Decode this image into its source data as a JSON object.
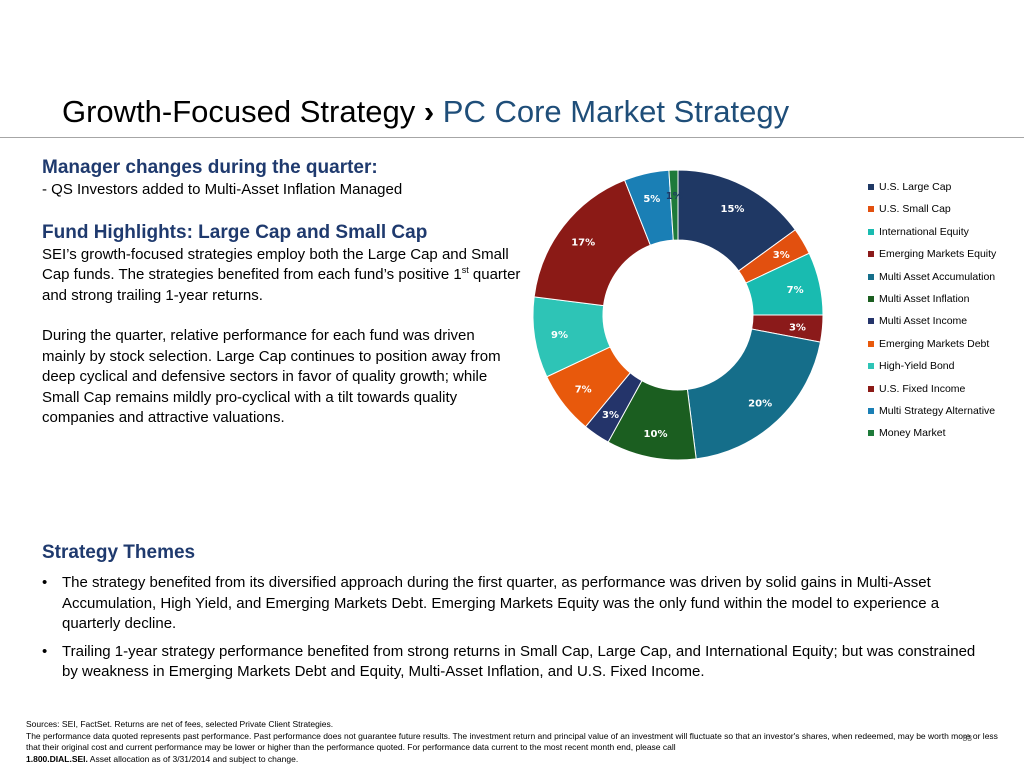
{
  "header": {
    "title_main": "Growth-Focused Strategy",
    "title_sep": "›",
    "title_sub": "PC Core Market Strategy"
  },
  "manager": {
    "heading": "Manager changes during the quarter:",
    "line": "- QS Investors added to Multi-Asset Inflation Managed"
  },
  "highlights": {
    "heading": "Fund Highlights:  Large Cap and Small Cap",
    "para1_a": "SEI’s growth-focused strategies employ both the Large Cap and Small Cap funds.  The strategies benefited from each fund’s positive 1",
    "para1_sup": "st",
    "para1_b": " quarter and strong trailing 1-year returns.",
    "para2": "During the quarter, relative performance for each fund was driven mainly by stock selection.  Large Cap continues to position away from deep cyclical and defensive sectors in favor of quality growth; while Small Cap remains mildly pro-cyclical with a tilt towards quality companies and attractive valuations."
  },
  "themes": {
    "heading": "Strategy Themes",
    "bullet_char": "•",
    "bullets": [
      "The strategy benefited from its diversified approach during the first quarter, as performance was driven by solid gains in Multi-Asset Accumulation, High Yield, and Emerging Markets Debt.  Emerging Markets Equity was the only fund within the model to experience a quarterly decline.",
      "Trailing 1-year strategy performance benefited from strong returns in Small Cap, Large Cap, and International Equity; but was constrained by weakness in Emerging Markets Debt and Equity, Multi-Asset Inflation, and U.S. Fixed Income."
    ]
  },
  "footer": {
    "line1": "Sources: SEI, FactSet. Returns are net of fees, selected  Private Client Strategies.",
    "line2": "The performance data quoted represents past performance. Past performance does not guarantee future results. The investment return and principal value of an investment will fluctuate so that an investor's shares, when redeemed, may be worth more or less that their original cost and current performance may be lower or higher than the performance quoted. For performance data current to the most recent month end, please call",
    "phone": "1.800.DIAL.SEI.",
    "line3": " Asset  allocation as of 3/31/2014 and subject to change.",
    "page": "33"
  },
  "chart_data": {
    "type": "pie",
    "donut": true,
    "legend_position": "right",
    "categories": [
      "U.S. Large Cap",
      "U.S. Small Cap",
      "International Equity",
      "Emerging Markets Equity",
      "Multi Asset Accumulation",
      "Multi Asset Inflation",
      "Multi Asset Income",
      "Emerging Markets Debt",
      "High-Yield Bond",
      "U.S. Fixed Income",
      "Multi Strategy Alternative",
      "Money Market"
    ],
    "values": [
      15,
      3,
      7,
      3,
      20,
      10,
      3,
      7,
      9,
      17,
      5,
      1
    ],
    "labels": [
      "15%",
      "3%",
      "7%",
      "3%",
      "20%",
      "10%",
      "3%",
      "7%",
      "9%",
      "17%",
      "5%",
      "1%"
    ],
    "unit": "%",
    "colors": [
      "#1f3864",
      "#e2500f",
      "#19bbb0",
      "#8b1a1a",
      "#156e8a",
      "#1b5e20",
      "#24346a",
      "#e8590c",
      "#2ec4b6",
      "#8b1a16",
      "#1a7fb5",
      "#1e7a3a"
    ],
    "label_colors": [
      "#ffffff",
      "#ffffff",
      "#ffffff",
      "#ffffff",
      "#ffffff",
      "#ffffff",
      "#ffffff",
      "#ffffff",
      "#ffffff",
      "#ffffff",
      "#ffffff",
      "#1f3864"
    ]
  }
}
